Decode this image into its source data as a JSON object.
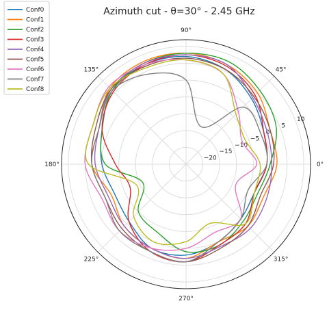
{
  "chart_data": {
    "type": "line",
    "subtype": "polar",
    "title": "Azimuth cut - θ=30° - 2.45 GHz",
    "angle_ticks": [
      {
        "angle": 0,
        "label": "0°"
      },
      {
        "angle": 45,
        "label": "45°"
      },
      {
        "angle": 90,
        "label": "90°"
      },
      {
        "angle": 135,
        "label": "135°"
      },
      {
        "angle": 180,
        "label": "180°"
      },
      {
        "angle": 225,
        "label": "225°"
      },
      {
        "angle": 270,
        "label": "270°"
      },
      {
        "angle": 315,
        "label": "315°"
      }
    ],
    "radial_ticks": [
      {
        "value": -20,
        "label": "−20"
      },
      {
        "value": -15,
        "label": "−15"
      },
      {
        "value": -10,
        "label": "−10"
      },
      {
        "value": -5,
        "label": "−5"
      },
      {
        "value": 0,
        "label": "0"
      },
      {
        "value": 5,
        "label": "5"
      },
      {
        "value": 10,
        "label": "10"
      }
    ],
    "rlim": [
      -25,
      12
    ],
    "radial_label_angle": 22.5,
    "grid": true,
    "legend_position": "top-left",
    "angles": [
      0,
      22.5,
      45,
      67.5,
      90,
      112.5,
      135,
      157.5,
      180,
      202.5,
      225,
      247.5,
      270,
      292.5,
      315,
      337.5
    ],
    "series": [
      {
        "name": "Conf0",
        "color": "#1f77b4",
        "values": [
          -1,
          0,
          2.5,
          5.5,
          7,
          7,
          6,
          2,
          0,
          -2,
          -1,
          2,
          2,
          0,
          -2,
          -3
        ]
      },
      {
        "name": "Conf1",
        "color": "#ff7f0e",
        "values": [
          2,
          2,
          5,
          7,
          8,
          8,
          7,
          3,
          3,
          -1,
          1,
          2,
          3,
          0,
          1,
          0
        ]
      },
      {
        "name": "Conf2",
        "color": "#2ca02c",
        "values": [
          0,
          4,
          6,
          8,
          8,
          7.5,
          6,
          2,
          -1,
          -11,
          -5,
          -3,
          1,
          1,
          -1,
          -2
        ]
      },
      {
        "name": "Conf3",
        "color": "#d62728",
        "values": [
          -1,
          0,
          4,
          6.5,
          7.5,
          7,
          5.5,
          2,
          -4,
          -7,
          -1,
          3,
          4,
          1,
          0,
          -3
        ]
      },
      {
        "name": "Conf4",
        "color": "#9467bd",
        "values": [
          0.5,
          1,
          3,
          7,
          7.5,
          7.5,
          6.5,
          3,
          2,
          0,
          1,
          2,
          3,
          1.5,
          2,
          1
        ]
      },
      {
        "name": "Conf5",
        "color": "#8c564b",
        "values": [
          1,
          2,
          3.5,
          5.5,
          6.5,
          6.5,
          6.5,
          4,
          3,
          1,
          2,
          3,
          4,
          2,
          1,
          -1
        ]
      },
      {
        "name": "Conf6",
        "color": "#e377c2",
        "values": [
          -4,
          -7,
          -3,
          4,
          6,
          7,
          7.5,
          5,
          5,
          2,
          3,
          2,
          0,
          -3,
          -2,
          -9
        ]
      },
      {
        "name": "Conf7",
        "color": "#7f7f7f",
        "values": [
          -1,
          -1,
          -1,
          -13,
          0,
          4,
          6,
          3,
          3,
          1,
          3,
          3,
          4,
          0,
          -2,
          -5
        ]
      },
      {
        "name": "Conf8",
        "color": "#bcbd22",
        "values": [
          -3,
          -6,
          -4,
          4,
          6,
          6,
          7,
          5,
          4,
          -9,
          -3,
          0,
          -2,
          -6,
          0,
          -3
        ]
      }
    ]
  }
}
